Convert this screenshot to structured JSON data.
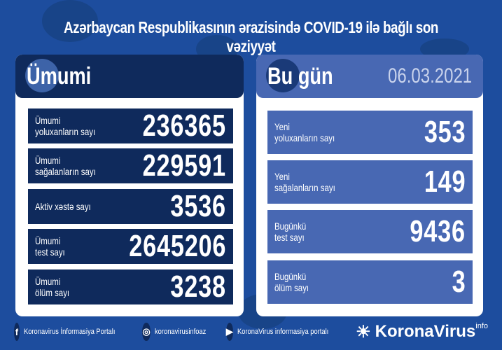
{
  "title": "Azərbaycan Respublikasının ərazisində COVID-19 ilə bağlı son vəziyyət",
  "total": {
    "heading": "Ümumi",
    "rows": [
      {
        "label1": "Ümumi",
        "label2": "yoluxanların sayı",
        "value": "236365"
      },
      {
        "label1": "Ümumi",
        "label2": "sağalanların sayı",
        "value": "229591"
      },
      {
        "label1": "Aktiv xəstə sayı",
        "label2": "",
        "value": "3536"
      },
      {
        "label1": "Ümumi",
        "label2": "test sayı",
        "value": "2645206"
      },
      {
        "label1": "Ümumi",
        "label2": "ölüm sayı",
        "value": "3238"
      }
    ]
  },
  "today": {
    "heading": "Bu gün",
    "date": "06.03.2021",
    "rows": [
      {
        "label1": "Yeni",
        "label2": "yoluxanların sayı",
        "value": "353"
      },
      {
        "label1": "Yeni",
        "label2": "sağalanların sayı",
        "value": "149"
      },
      {
        "label1": "Bugünkü",
        "label2": "test sayı",
        "value": "9436"
      },
      {
        "label1": "Bugünkü",
        "label2": "ölüm sayı",
        "value": "3"
      }
    ]
  },
  "footer": {
    "facebook": "Koronavirus İnformasiya Portalı",
    "instagram": "koronavirusinfoaz",
    "youtube": "KoronaVirus informasiya portalı",
    "logo": "KoronaVirus",
    "logo_sup": "info",
    "icons": {
      "facebook": "f",
      "instagram": "◎",
      "youtube": "▶",
      "logo": "☀"
    }
  },
  "colors": {
    "background": "#1d4d9e",
    "total_dark": "#0f2a5c",
    "today_blue": "#4868b3"
  }
}
